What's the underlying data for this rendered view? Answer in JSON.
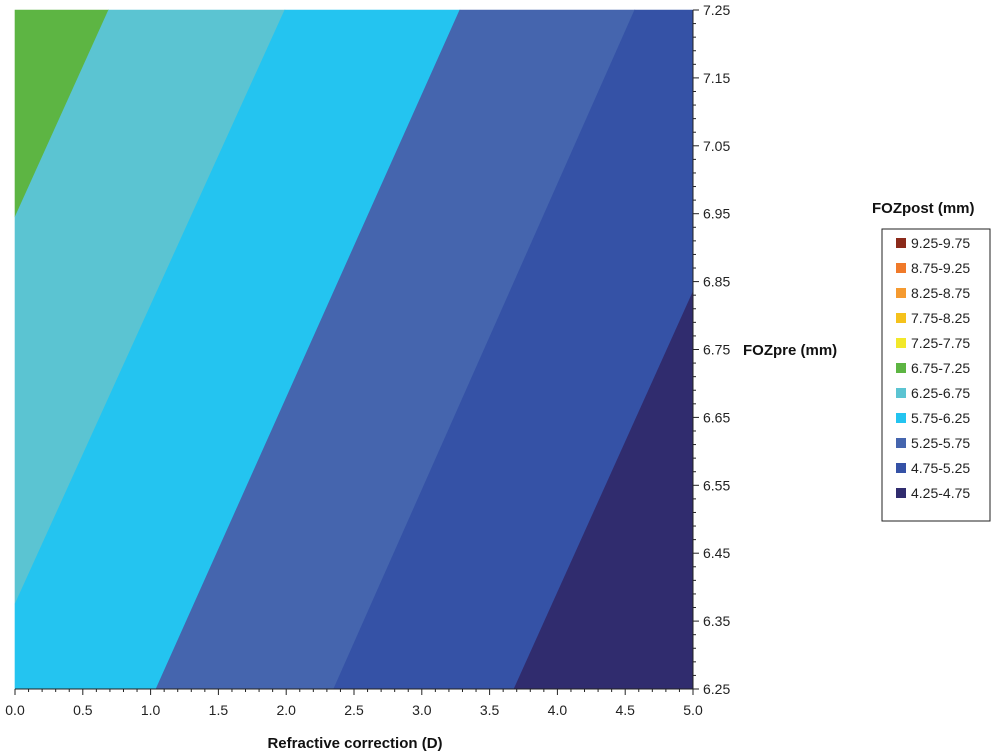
{
  "chart_data": {
    "type": "contour",
    "xlabel": "Refractive correction (D)",
    "ylabel": "FOZpre (mm)",
    "xlim": [
      0.0,
      5.0
    ],
    "ylim": [
      6.25,
      7.25
    ],
    "x_ticks": [
      "0.0",
      "0.5",
      "1.0",
      "1.5",
      "2.0",
      "2.5",
      "3.0",
      "3.5",
      "4.0",
      "4.5",
      "5.0"
    ],
    "y_ticks": [
      "6.25",
      "6.35",
      "6.45",
      "6.55",
      "6.65",
      "6.75",
      "6.85",
      "6.95",
      "7.05",
      "7.15",
      "7.25"
    ],
    "legend": {
      "title": "FOZpost (mm)",
      "placement": "right",
      "entries": [
        {
          "label": "9.25-9.75",
          "color": "#8B2A1A"
        },
        {
          "label": "8.75-9.25",
          "color": "#F07A2A"
        },
        {
          "label": "8.25-8.75",
          "color": "#F59A30"
        },
        {
          "label": "7.75-8.25",
          "color": "#F5C21C"
        },
        {
          "label": "7.25-7.75",
          "color": "#F2E82A"
        },
        {
          "label": "6.75-7.25",
          "color": "#5DB543"
        },
        {
          "label": "6.25-6.75",
          "color": "#5BC4D2"
        },
        {
          "label": "5.75-6.25",
          "color": "#24C4F0"
        },
        {
          "label": "5.25-5.75",
          "color": "#4565AE"
        },
        {
          "label": "4.75-5.25",
          "color": "#3552A6"
        },
        {
          "label": "4.25-4.75",
          "color": "#302C6E"
        }
      ]
    },
    "contour_boundaries": [
      {
        "level": 6.75,
        "points": [
          [
            0.0,
            6.945
          ],
          [
            0.69,
            7.25
          ]
        ]
      },
      {
        "level": 6.25,
        "points": [
          [
            0.0,
            6.375
          ],
          [
            1.99,
            7.25
          ]
        ]
      },
      {
        "level": 5.75,
        "points": [
          [
            1.04,
            6.25
          ],
          [
            3.28,
            7.25
          ]
        ]
      },
      {
        "level": 5.25,
        "points": [
          [
            2.35,
            6.25
          ],
          [
            4.57,
            7.25
          ]
        ]
      },
      {
        "level": 4.75,
        "points": [
          [
            3.68,
            6.25
          ],
          [
            5.0,
            6.835
          ]
        ]
      }
    ],
    "regions": [
      {
        "range": "6.75-7.25",
        "color": "#5DB543",
        "polygon": [
          [
            0.0,
            7.25
          ],
          [
            0.69,
            7.25
          ],
          [
            0.0,
            6.945
          ]
        ]
      },
      {
        "range": "6.25-6.75",
        "color": "#5BC4D2",
        "polygon": [
          [
            0.0,
            6.945
          ],
          [
            0.69,
            7.25
          ],
          [
            1.99,
            7.25
          ],
          [
            0.0,
            6.375
          ]
        ]
      },
      {
        "range": "5.75-6.25",
        "color": "#24C4F0",
        "polygon": [
          [
            0.0,
            6.375
          ],
          [
            1.99,
            7.25
          ],
          [
            3.28,
            7.25
          ],
          [
            1.04,
            6.25
          ],
          [
            0.0,
            6.25
          ]
        ]
      },
      {
        "range": "5.25-5.75",
        "color": "#4565AE",
        "polygon": [
          [
            1.04,
            6.25
          ],
          [
            3.28,
            7.25
          ],
          [
            4.57,
            7.25
          ],
          [
            2.35,
            6.25
          ]
        ]
      },
      {
        "range": "4.75-5.25",
        "color": "#3552A6",
        "polygon": [
          [
            2.35,
            6.25
          ],
          [
            4.57,
            7.25
          ],
          [
            5.0,
            7.25
          ],
          [
            5.0,
            6.835
          ],
          [
            3.68,
            6.25
          ]
        ]
      },
      {
        "range": "4.25-4.75",
        "color": "#302C6E",
        "polygon": [
          [
            3.68,
            6.25
          ],
          [
            5.0,
            6.835
          ],
          [
            5.0,
            6.25
          ]
        ]
      }
    ]
  }
}
